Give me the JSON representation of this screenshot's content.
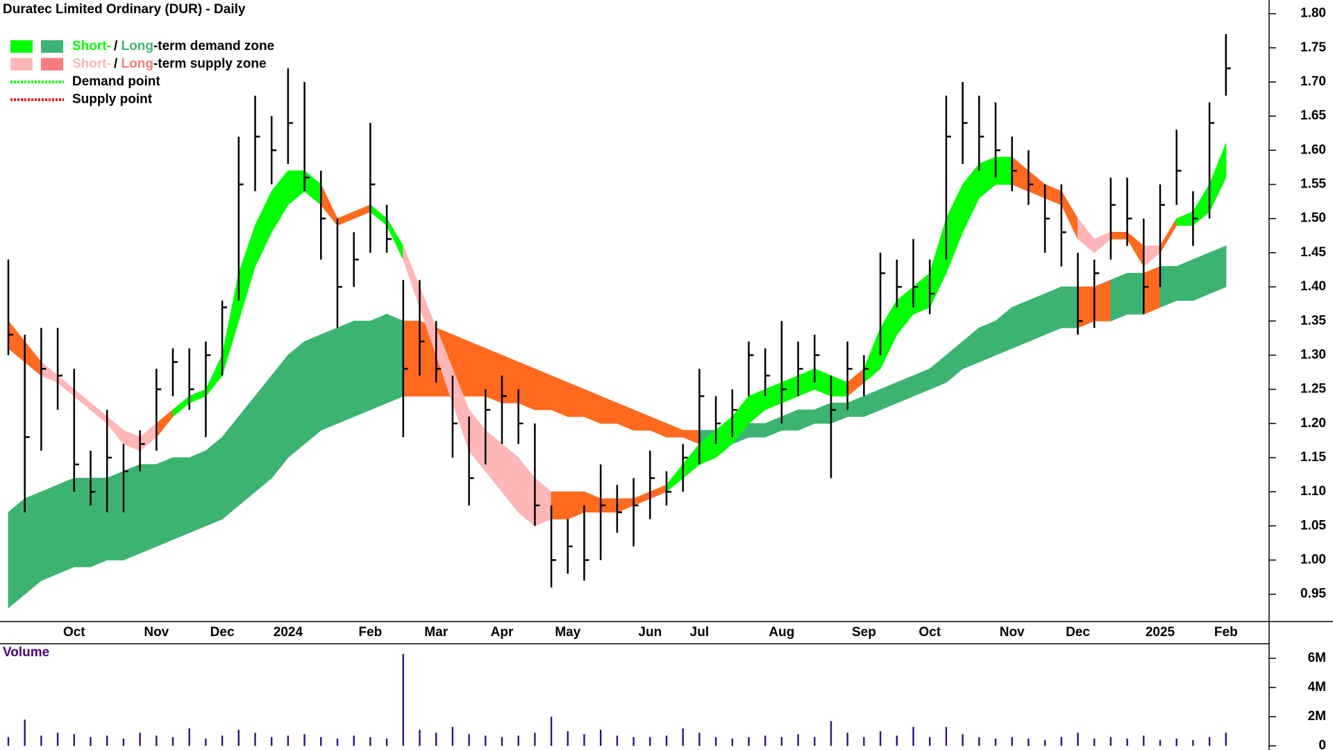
{
  "chart_data": [
    {
      "type": "hlc",
      "title": "Duratec Limited Ordinary (DUR) - Daily",
      "color": "#000000",
      "categories": [
        null,
        null,
        null,
        null,
        "Oct",
        null,
        null,
        null,
        null,
        "Nov",
        null,
        null,
        null,
        "Dec",
        null,
        null,
        null,
        "2024",
        null,
        null,
        null,
        null,
        "Feb",
        null,
        null,
        null,
        "Mar",
        null,
        null,
        null,
        "Apr",
        null,
        null,
        null,
        "May",
        null,
        null,
        null,
        null,
        "Jun",
        null,
        null,
        "Jul",
        null,
        null,
        null,
        null,
        "Aug",
        null,
        null,
        null,
        null,
        "Sep",
        null,
        null,
        null,
        "Oct",
        null,
        null,
        null,
        null,
        "Nov",
        null,
        null,
        null,
        "Dec",
        null,
        null,
        null,
        null,
        "2025",
        null,
        null,
        null,
        "Feb"
      ],
      "high": [
        1.44,
        1.33,
        1.34,
        1.34,
        1.28,
        1.16,
        1.22,
        1.17,
        1.19,
        1.28,
        1.31,
        1.31,
        1.32,
        1.38,
        1.62,
        1.68,
        1.65,
        1.72,
        1.7,
        1.57,
        1.5,
        1.48,
        1.64,
        1.52,
        1.41,
        1.41,
        1.35,
        1.27,
        1.21,
        1.25,
        1.27,
        1.25,
        1.2,
        1.08,
        1.06,
        1.08,
        1.14,
        1.11,
        1.12,
        1.16,
        1.13,
        1.17,
        1.28,
        1.24,
        1.25,
        1.32,
        1.31,
        1.35,
        1.32,
        1.33,
        1.27,
        1.32,
        1.3,
        1.45,
        1.44,
        1.47,
        1.44,
        1.68,
        1.7,
        1.68,
        1.67,
        1.62,
        1.6,
        1.55,
        1.55,
        1.45,
        1.44,
        1.56,
        1.56,
        1.5,
        1.55,
        1.63,
        1.54,
        1.67,
        1.77
      ],
      "low": [
        1.3,
        1.07,
        1.16,
        1.22,
        1.1,
        1.08,
        1.07,
        1.07,
        1.13,
        1.16,
        1.24,
        1.22,
        1.18,
        1.27,
        1.38,
        1.54,
        1.55,
        1.58,
        1.54,
        1.44,
        1.34,
        1.4,
        1.45,
        1.45,
        1.18,
        1.27,
        1.26,
        1.15,
        1.08,
        1.14,
        1.17,
        1.17,
        1.05,
        0.96,
        0.98,
        0.97,
        1.0,
        1.04,
        1.02,
        1.06,
        1.08,
        1.1,
        1.14,
        1.17,
        1.18,
        1.24,
        1.24,
        1.2,
        1.24,
        1.26,
        1.12,
        1.22,
        1.24,
        1.3,
        1.37,
        1.37,
        1.36,
        1.44,
        1.58,
        1.57,
        1.56,
        1.54,
        1.52,
        1.45,
        1.43,
        1.33,
        1.34,
        1.44,
        1.46,
        1.36,
        1.4,
        1.52,
        1.46,
        1.5,
        1.68
      ],
      "close": [
        1.33,
        1.18,
        1.28,
        1.27,
        1.14,
        1.1,
        1.15,
        1.13,
        1.17,
        1.25,
        1.29,
        1.25,
        1.3,
        1.37,
        1.55,
        1.62,
        1.6,
        1.64,
        1.56,
        1.5,
        1.4,
        1.44,
        1.55,
        1.47,
        1.28,
        1.32,
        1.28,
        1.2,
        1.12,
        1.22,
        1.24,
        1.2,
        1.08,
        1.0,
        1.02,
        1.0,
        1.08,
        1.07,
        1.08,
        1.12,
        1.1,
        1.15,
        1.24,
        1.2,
        1.22,
        1.3,
        1.27,
        1.25,
        1.28,
        1.3,
        1.22,
        1.28,
        1.28,
        1.42,
        1.4,
        1.4,
        1.39,
        1.62,
        1.64,
        1.62,
        1.6,
        1.57,
        1.55,
        1.5,
        1.48,
        1.35,
        1.42,
        1.52,
        1.5,
        1.4,
        1.52,
        1.57,
        1.5,
        1.64,
        1.72
      ],
      "zones": [
        {
          "upper": [
            1.07,
            1.09,
            1.1,
            1.11,
            1.12,
            1.12,
            1.12,
            1.13,
            1.14,
            1.14,
            1.15,
            1.15,
            1.16,
            1.18,
            1.21,
            1.24,
            1.27,
            1.3,
            1.32,
            1.33,
            1.34,
            1.35,
            1.35,
            1.36,
            1.35,
            1.35,
            1.34,
            1.33,
            1.32,
            1.31,
            1.3,
            1.29,
            1.28,
            1.27,
            1.26,
            1.25,
            1.24,
            1.23,
            1.22,
            1.21,
            1.2,
            1.19,
            1.19,
            1.19,
            1.19,
            1.2,
            1.2,
            1.21,
            1.22,
            1.22,
            1.23,
            1.23,
            1.24,
            1.25,
            1.26,
            1.27,
            1.28,
            1.3,
            1.32,
            1.34,
            1.35,
            1.37,
            1.38,
            1.39,
            1.4,
            1.4,
            1.4,
            1.41,
            1.42,
            1.42,
            1.43,
            1.43,
            1.44,
            1.45,
            1.46
          ],
          "lower": [
            0.93,
            0.95,
            0.97,
            0.98,
            0.99,
            0.99,
            1.0,
            1.0,
            1.01,
            1.02,
            1.03,
            1.04,
            1.05,
            1.06,
            1.08,
            1.1,
            1.12,
            1.15,
            1.17,
            1.19,
            1.2,
            1.21,
            1.22,
            1.23,
            1.24,
            1.24,
            1.24,
            1.24,
            1.24,
            1.24,
            1.23,
            1.23,
            1.22,
            1.22,
            1.21,
            1.21,
            1.2,
            1.2,
            1.19,
            1.19,
            1.18,
            1.18,
            1.17,
            1.17,
            1.17,
            1.18,
            1.18,
            1.19,
            1.19,
            1.2,
            1.2,
            1.21,
            1.21,
            1.22,
            1.23,
            1.24,
            1.25,
            1.26,
            1.28,
            1.29,
            1.3,
            1.31,
            1.32,
            1.33,
            1.34,
            1.34,
            1.35,
            1.35,
            1.36,
            1.36,
            1.37,
            1.38,
            1.38,
            1.39,
            1.4
          ],
          "colors": [
            "#3cb371",
            "#3cb371",
            "#3cb371",
            "#3cb371",
            "#3cb371",
            "#3cb371",
            "#3cb371",
            "#3cb371",
            "#3cb371",
            "#3cb371",
            "#3cb371",
            "#3cb371",
            "#3cb371",
            "#3cb371",
            "#3cb371",
            "#3cb371",
            "#3cb371",
            "#3cb371",
            "#3cb371",
            "#3cb371",
            "#3cb371",
            "#3cb371",
            "#3cb371",
            "#3cb371",
            "#ff6a1f",
            "#ff6a1f",
            "#ff6a1f",
            "#ff6a1f",
            "#ff6a1f",
            "#ff6a1f",
            "#ff6a1f",
            "#ff6a1f",
            "#ff6a1f",
            "#ff6a1f",
            "#ff6a1f",
            "#ff6a1f",
            "#ff6a1f",
            "#ff6a1f",
            "#ff6a1f",
            "#ff6a1f",
            "#ff6a1f",
            "#ff6a1f",
            "#3cb371",
            "#3cb371",
            "#3cb371",
            "#3cb371",
            "#3cb371",
            "#3cb371",
            "#3cb371",
            "#3cb371",
            "#3cb371",
            "#3cb371",
            "#3cb371",
            "#3cb371",
            "#3cb371",
            "#3cb371",
            "#3cb371",
            "#3cb371",
            "#3cb371",
            "#3cb371",
            "#3cb371",
            "#3cb371",
            "#3cb371",
            "#3cb371",
            "#3cb371",
            "#ff6a1f",
            "#ff6a1f",
            "#3cb371",
            "#3cb371",
            "#ff6a1f",
            "#3cb371",
            "#3cb371",
            "#3cb371",
            "#3cb371",
            "#3cb371"
          ]
        },
        {
          "upper": [
            1.35,
            1.32,
            1.29,
            1.27,
            1.25,
            1.23,
            1.21,
            1.19,
            1.18,
            1.2,
            1.22,
            1.24,
            1.25,
            1.3,
            1.42,
            1.49,
            1.54,
            1.57,
            1.57,
            1.55,
            1.5,
            1.51,
            1.52,
            1.5,
            1.46,
            1.4,
            1.34,
            1.28,
            1.22,
            1.19,
            1.17,
            1.15,
            1.12,
            1.1,
            1.1,
            1.1,
            1.09,
            1.09,
            1.09,
            1.1,
            1.11,
            1.14,
            1.17,
            1.19,
            1.21,
            1.24,
            1.25,
            1.26,
            1.27,
            1.28,
            1.27,
            1.26,
            1.28,
            1.34,
            1.38,
            1.4,
            1.42,
            1.5,
            1.55,
            1.58,
            1.59,
            1.59,
            1.57,
            1.55,
            1.54,
            1.5,
            1.47,
            1.48,
            1.48,
            1.46,
            1.46,
            1.5,
            1.51,
            1.55,
            1.61
          ],
          "lower": [
            1.31,
            1.29,
            1.27,
            1.26,
            1.24,
            1.22,
            1.2,
            1.17,
            1.16,
            1.18,
            1.21,
            1.23,
            1.24,
            1.27,
            1.35,
            1.43,
            1.48,
            1.52,
            1.54,
            1.52,
            1.49,
            1.5,
            1.51,
            1.49,
            1.44,
            1.37,
            1.3,
            1.23,
            1.16,
            1.13,
            1.1,
            1.07,
            1.05,
            1.06,
            1.06,
            1.07,
            1.07,
            1.07,
            1.08,
            1.09,
            1.1,
            1.12,
            1.14,
            1.15,
            1.17,
            1.2,
            1.22,
            1.23,
            1.24,
            1.25,
            1.24,
            1.24,
            1.26,
            1.28,
            1.33,
            1.36,
            1.37,
            1.42,
            1.48,
            1.53,
            1.55,
            1.55,
            1.54,
            1.53,
            1.52,
            1.47,
            1.45,
            1.47,
            1.47,
            1.43,
            1.45,
            1.49,
            1.49,
            1.51,
            1.56
          ],
          "colors": [
            "#ff6a1f",
            "#ff6a1f",
            "#ffb6b6",
            "#ffb6b6",
            "#ffb6b6",
            "#ffb6b6",
            "#ffb6b6",
            "#ffb6b6",
            "#ffb6b6",
            "#ff6a1f",
            "#00ff00",
            "#00ff00",
            "#00ff00",
            "#00ff00",
            "#00ff00",
            "#00ff00",
            "#00ff00",
            "#00ff00",
            "#00ff00",
            "#ff6a1f",
            "#ff6a1f",
            "#ff6a1f",
            "#00ff00",
            "#00ff00",
            "#ffb6b6",
            "#ffb6b6",
            "#ffb6b6",
            "#ffb6b6",
            "#ffb6b6",
            "#ffb6b6",
            "#ffb6b6",
            "#ffb6b6",
            "#ffb6b6",
            "#ff6a1f",
            "#ff6a1f",
            "#ff6a1f",
            "#ff6a1f",
            "#ff6a1f",
            "#ff6a1f",
            "#ff6a1f",
            "#00ff00",
            "#00ff00",
            "#00ff00",
            "#00ff00",
            "#00ff00",
            "#00ff00",
            "#00ff00",
            "#00ff00",
            "#00ff00",
            "#00ff00",
            "#00ff00",
            "#ff6a1f",
            "#00ff00",
            "#00ff00",
            "#00ff00",
            "#00ff00",
            "#00ff00",
            "#00ff00",
            "#00ff00",
            "#00ff00",
            "#00ff00",
            "#ff6a1f",
            "#ff6a1f",
            "#ff6a1f",
            "#ff6a1f",
            "#ffb6b6",
            "#ffb6b6",
            "#ff6a1f",
            "#ff6a1f",
            "#ffb6b6",
            "#ff6a1f",
            "#00ff00",
            "#00ff00",
            "#00ff00",
            "#00ff00"
          ]
        }
      ],
      "ylim": [
        0.91,
        1.82
      ],
      "yticks": [
        0.95,
        {
          "value": 1.0,
          "label": "1.00"
        },
        1.05,
        {
          "value": 1.1,
          "label": "1.10"
        },
        1.15,
        {
          "value": 1.2,
          "label": "1.20"
        },
        1.25,
        {
          "value": 1.3,
          "label": "1.30"
        },
        1.35,
        {
          "value": 1.4,
          "label": "1.40"
        },
        1.45,
        {
          "value": 1.5,
          "label": "1.50"
        },
        1.55,
        {
          "value": 1.6,
          "label": "1.60"
        },
        1.65,
        {
          "value": 1.7,
          "label": "1.70"
        },
        1.75,
        {
          "value": 1.8,
          "label": "1.80"
        }
      ],
      "legend": [
        {
          "swatches": [
            "#00ff00",
            "#3cb371"
          ],
          "parts": [
            {
              "text": "Short-",
              "color": "#00ff00"
            },
            {
              "text": "/ ",
              "color": "#000000"
            },
            {
              "text": "Long",
              "color": "#3cb371"
            },
            {
              "text": "-term demand zone",
              "color": "#000000"
            }
          ]
        },
        {
          "swatches": [
            "#ffb6b6",
            "#f77b7b"
          ],
          "parts": [
            {
              "text": "Short-",
              "color": "#ffb6b6"
            },
            {
              "text": "/ ",
              "color": "#000000"
            },
            {
              "text": "Long",
              "color": "#f77b7b"
            },
            {
              "text": "-term supply zone",
              "color": "#000000"
            }
          ]
        },
        {
          "line": "#00ff00",
          "parts": [
            {
              "text": "Demand point",
              "color": "#000000"
            }
          ]
        },
        {
          "line": "#ff0000",
          "parts": [
            {
              "text": "Supply point",
              "color": "#000000"
            }
          ]
        }
      ]
    },
    {
      "type": "bar",
      "title": "Volume",
      "title_color": "#4b0082",
      "color": "#1a1a8c",
      "values": [
        600000,
        1800000,
        700000,
        900000,
        800000,
        600000,
        700000,
        500000,
        900000,
        700000,
        600000,
        1200000,
        500000,
        700000,
        1100000,
        900000,
        600000,
        700000,
        800000,
        600000,
        500000,
        700000,
        600000,
        500000,
        6300000,
        1100000,
        900000,
        1300000,
        800000,
        700000,
        600000,
        700000,
        900000,
        2000000,
        1000000,
        800000,
        1100000,
        700000,
        600000,
        600000,
        700000,
        1200000,
        900000,
        600000,
        500000,
        600000,
        700000,
        600000,
        800000,
        600000,
        1700000,
        900000,
        600000,
        1000000,
        700000,
        1300000,
        600000,
        1300000,
        800000,
        600000,
        500000,
        600000,
        500000,
        400000,
        600000,
        900000,
        500000,
        600000,
        500000,
        700000,
        400000,
        500000,
        400000,
        600000,
        900000
      ],
      "ylim": [
        0,
        7000000
      ],
      "yticks": [
        0,
        {
          "value": 2000000,
          "label": "2M"
        },
        {
          "value": 4000000,
          "label": "4M"
        },
        {
          "value": 6000000,
          "label": "6M"
        }
      ]
    }
  ]
}
